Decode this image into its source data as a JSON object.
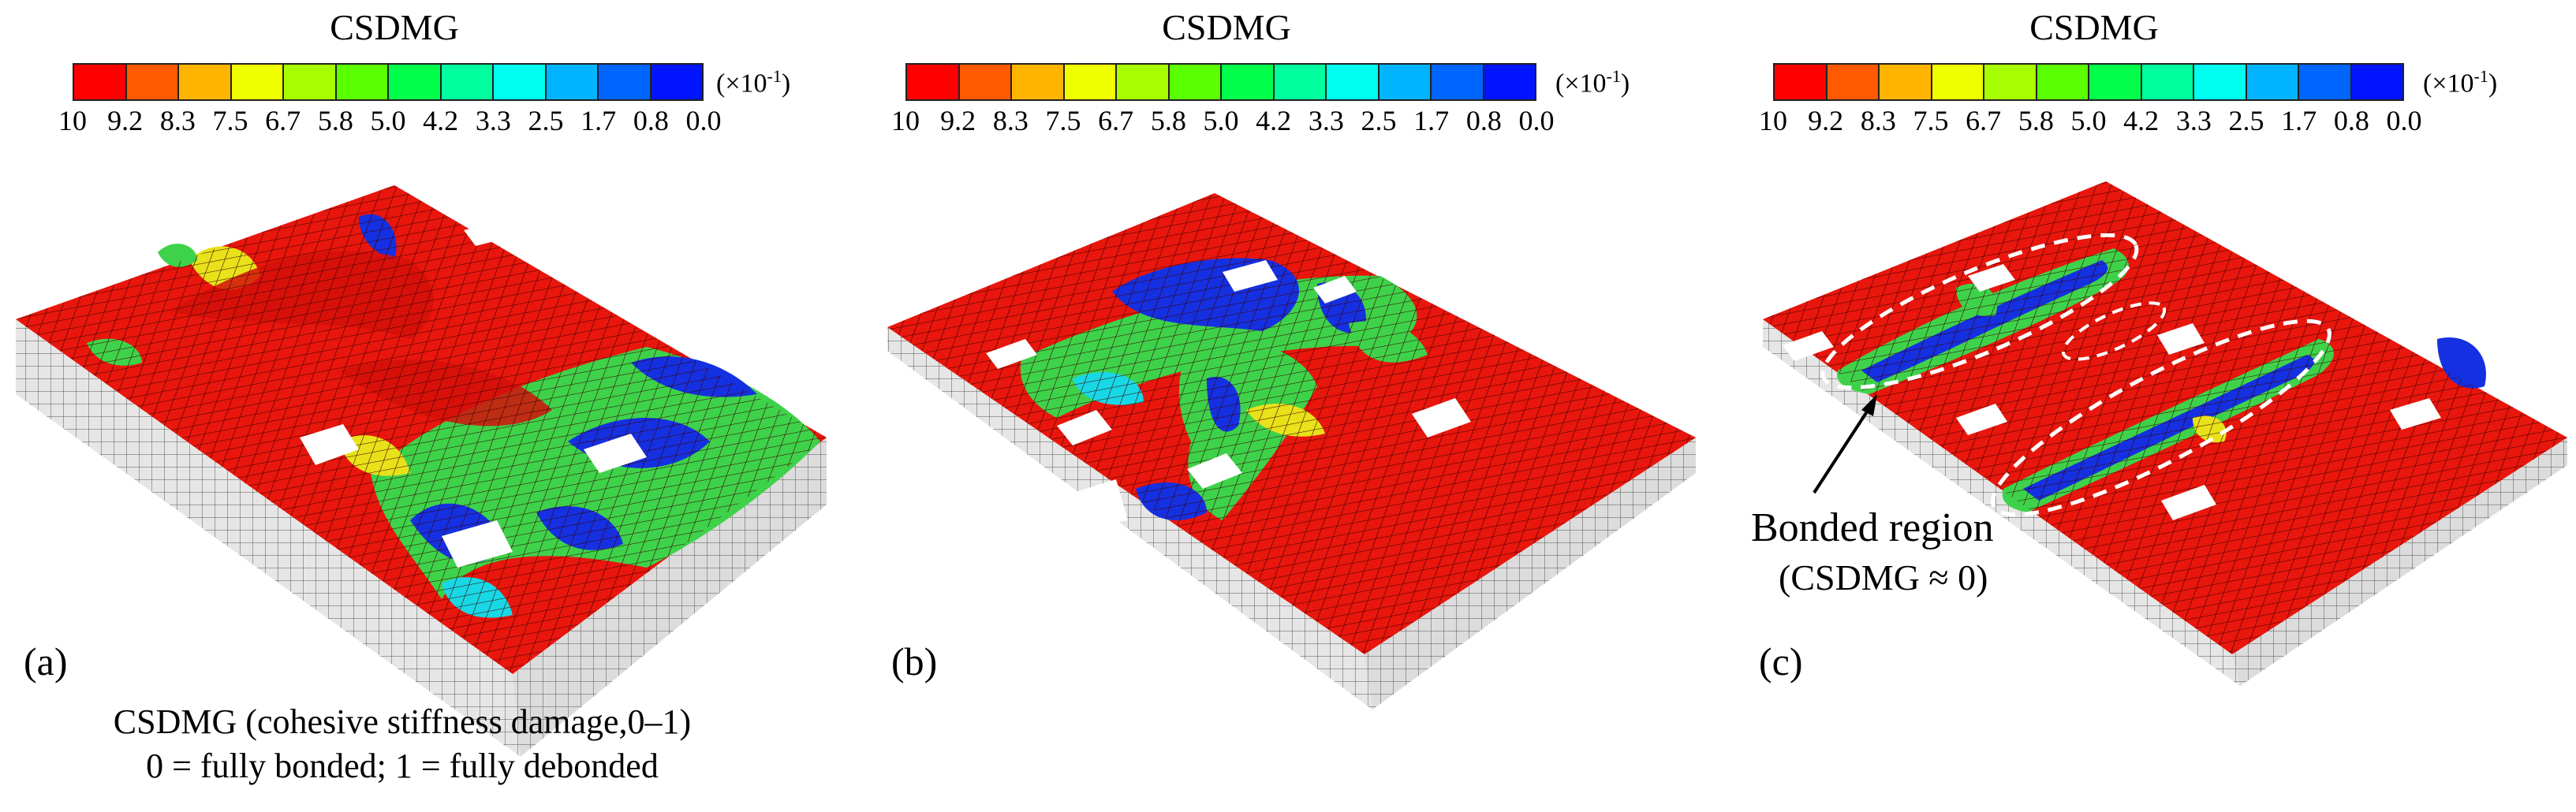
{
  "colorbar": {
    "title": "CSDMG",
    "multiplier_base": "(×10",
    "multiplier_exp": "-1",
    "multiplier_close": ")",
    "ticks": [
      "10",
      "9.2",
      "8.3",
      "7.5",
      "6.7",
      "5.8",
      "5.0",
      "4.2",
      "3.3",
      "2.5",
      "1.7",
      "0.8",
      "0.0"
    ],
    "colors": [
      "#ff0000",
      "#ff5a00",
      "#ffb400",
      "#f0ff00",
      "#a8ff00",
      "#5aff00",
      "#00ff4a",
      "#00ff9e",
      "#00fff0",
      "#00b4ff",
      "#0064ff",
      "#0014ff"
    ]
  },
  "panels": [
    {
      "label": "(a)"
    },
    {
      "label": "(b)"
    },
    {
      "label": "(c)"
    }
  ],
  "caption": {
    "line1": "CSDMG (cohesive stiffness damage,0–1)",
    "line2": "0 = fully bonded; 1 = fully debonded"
  },
  "annotation": {
    "label": "Bonded region",
    "sub": "(CSDMG ≈ 0)"
  },
  "surface_colors": {
    "red": "#e8160c",
    "blue": "#1530e0",
    "green": "#3ed24a",
    "cyan": "#18d8e6",
    "yellow": "#e8e21a",
    "side": "#e6e6e6"
  }
}
